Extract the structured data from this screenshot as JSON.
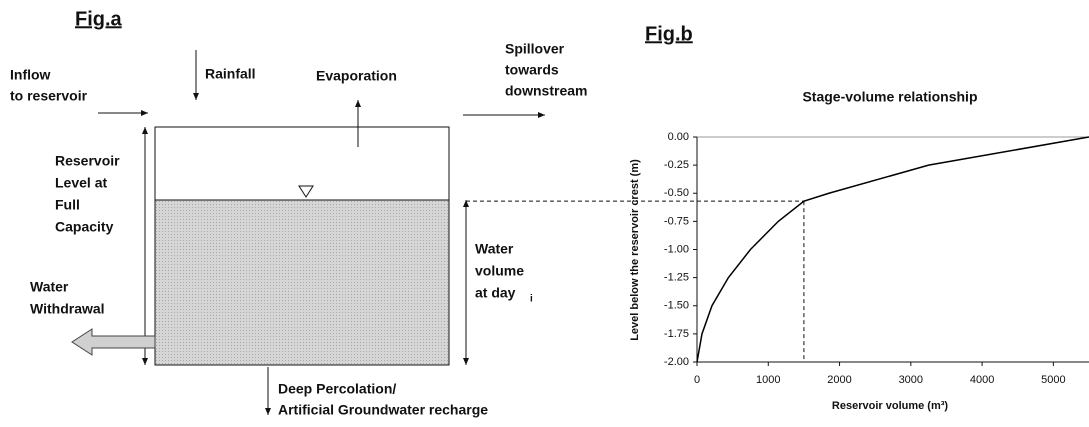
{
  "fig_a": {
    "title": "Fig.a",
    "inflow": [
      "Inflow",
      "to reservoir"
    ],
    "rainfall": "Rainfall",
    "evaporation": "Evaporation",
    "spillover": [
      "Spillover",
      "towards",
      "downstream"
    ],
    "full_level": [
      "Reservoir",
      "Level at",
      "Full",
      "Capacity"
    ],
    "water_volume": [
      "Water",
      "volume",
      "at day",
      "i"
    ],
    "withdrawal": [
      "Water",
      "Withdrawal"
    ],
    "percolation": [
      "Deep Percolation/",
      "Artificial Groundwater recharge"
    ]
  },
  "fig_b_title": "Fig.b",
  "chart_data": {
    "type": "line",
    "title": "Stage-volume relationship",
    "xlabel": "Reservoir volume (m³)",
    "ylabel": "Level below the reservoir crest (m)",
    "x": [
      0,
      70,
      210,
      440,
      750,
      1140,
      1500,
      1850,
      3250,
      5500
    ],
    "series": [
      {
        "color": "#000000",
        "values": [
          -2,
          -1.75,
          -1.5,
          -1.25,
          -1,
          -0.75,
          -0.57,
          -0.5,
          -0.25,
          0
        ]
      }
    ],
    "reference_point": {
      "x": 1500,
      "y": -0.57
    },
    "xlim": [
      0,
      5500
    ],
    "ylim": [
      -2,
      0
    ],
    "xticks": [
      0,
      1000,
      2000,
      3000,
      4000,
      5000
    ],
    "yticks": [
      {
        "value": 0,
        "label": "0.00"
      },
      {
        "value": -0.25,
        "label": "-0.25"
      },
      {
        "value": -0.5,
        "label": "-0.50"
      },
      {
        "value": -0.75,
        "label": "-0.75"
      },
      {
        "value": -1,
        "label": "-1.00"
      },
      {
        "value": -1.25,
        "label": "-1.25"
      },
      {
        "value": -1.5,
        "label": "-1.50"
      },
      {
        "value": -1.75,
        "label": "-1.75"
      },
      {
        "value": -2,
        "label": "-2.00"
      }
    ]
  }
}
